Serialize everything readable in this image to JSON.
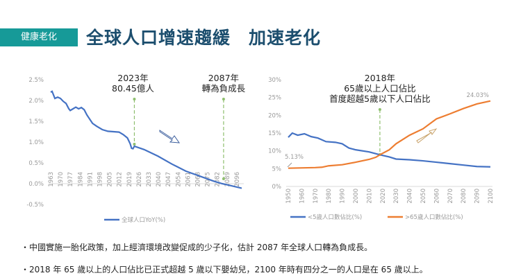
{
  "header": {
    "badge": "健康老化",
    "title": "全球人口增速趨緩　加速老化"
  },
  "chart_data": [
    {
      "type": "line",
      "ylim": [
        -0.5,
        2.5
      ],
      "y_ticks": [
        "2.5%",
        "2.0%",
        "1.5%",
        "1.0%",
        "0.5%",
        "0.0%",
        "-0.5%"
      ],
      "x_ticks": [
        "1963",
        "1970",
        "1977",
        "1984",
        "1991",
        "1998",
        "2005",
        "2012",
        "2019",
        "2026",
        "2033",
        "2040",
        "2047",
        "2054",
        "2061",
        "2068",
        "2075",
        "2082",
        "2089",
        "2096"
      ],
      "legend": "bottom",
      "grid": false,
      "series": [
        {
          "name": "全球人口YoY(%)",
          "color": "#4472c4",
          "x": [
            1963,
            1964,
            1966,
            1968,
            1970,
            1972,
            1974,
            1976,
            1977,
            1979,
            1981,
            1983,
            1985,
            1987,
            1989,
            1991,
            1993,
            1996,
            2000,
            2004,
            2008,
            2012,
            2015,
            2018,
            2020,
            2021,
            2022,
            2023,
            2030,
            2040,
            2050,
            2060,
            2070,
            2080,
            2086,
            2090,
            2100
          ],
          "y": [
            2.2,
            2.22,
            2.05,
            2.08,
            2.05,
            1.98,
            1.93,
            1.8,
            1.76,
            1.8,
            1.84,
            1.8,
            1.83,
            1.78,
            1.65,
            1.55,
            1.45,
            1.38,
            1.3,
            1.26,
            1.25,
            1.24,
            1.18,
            1.1,
            0.96,
            0.85,
            0.84,
            0.9,
            0.82,
            0.66,
            0.47,
            0.3,
            0.18,
            0.06,
            0.0,
            -0.03,
            -0.11
          ]
        }
      ],
      "annotations": [
        {
          "x": 2023,
          "text": [
            "2023年",
            "80.45億人"
          ]
        },
        {
          "x": 2087,
          "text": [
            "2087年",
            "轉為負成長"
          ]
        }
      ]
    },
    {
      "type": "line",
      "ylim": [
        0,
        30
      ],
      "y_ticks": [
        "30%",
        "25%",
        "20%",
        "15%",
        "10%",
        "5%",
        "0%"
      ],
      "x_ticks": [
        "1950",
        "1960",
        "1970",
        "1980",
        "1990",
        "2000",
        "2010",
        "2020",
        "2030",
        "2040",
        "2050",
        "2060",
        "2070",
        "2080",
        "2090",
        "2100"
      ],
      "legend": "bottom",
      "grid": false,
      "series": [
        {
          "name": "<5歲人口數佔比(%)",
          "color": "#4472c4",
          "x": [
            1950,
            1953,
            1957,
            1962,
            1967,
            1972,
            1978,
            1985,
            1990,
            1995,
            2000,
            2010,
            2018,
            2025,
            2030,
            2040,
            2050,
            2060,
            2070,
            2080,
            2090,
            2100
          ],
          "y": [
            13.8,
            15.0,
            14.4,
            14.8,
            14.0,
            13.6,
            12.6,
            12.4,
            12.0,
            10.8,
            10.3,
            9.7,
            8.9,
            8.3,
            7.7,
            7.5,
            7.2,
            6.8,
            6.4,
            6.0,
            5.6,
            5.5
          ]
        },
        {
          "name": ">65歲人口數佔比(%)",
          "color": "#ed7d31",
          "x": [
            1950,
            1970,
            1975,
            1980,
            1990,
            2000,
            2010,
            2015,
            2018,
            2025,
            2030,
            2040,
            2050,
            2055,
            2060,
            2070,
            2080,
            2090,
            2100
          ],
          "y": [
            5.13,
            5.3,
            5.4,
            5.8,
            6.1,
            6.8,
            7.6,
            8.2,
            8.9,
            10.3,
            12.0,
            14.4,
            16.2,
            17.6,
            19.0,
            20.4,
            21.9,
            23.2,
            24.03
          ]
        }
      ],
      "data_labels": [
        "5.13%",
        "24.03%"
      ],
      "annotations": [
        {
          "x": 2018,
          "text": [
            "2018年",
            "65歲以上人口佔比",
            "首度超越5歲以下人口佔比"
          ]
        }
      ]
    }
  ],
  "bullets": [
    "・中國實施一胎化政策，加上經濟環境改變促成的少子化，估計 2087 年全球人口轉為負成長。",
    "・2018 年 65 歲以上的人口佔比已正式超越 5 歲以下嬰幼兒，2100 年時有四分之一的人口是在 65 歲以上。"
  ]
}
